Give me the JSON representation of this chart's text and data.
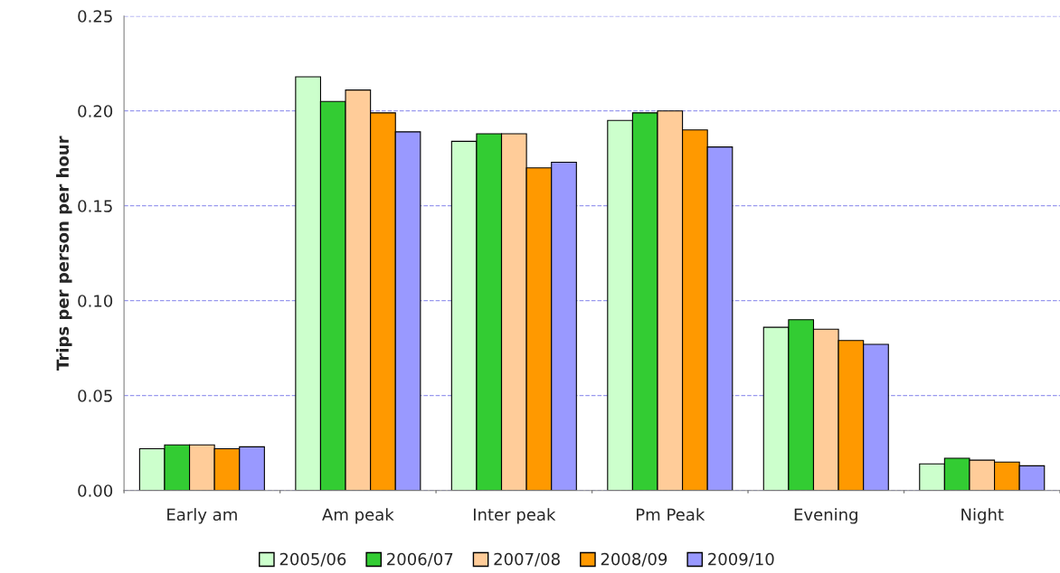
{
  "chart_data": {
    "type": "bar",
    "ylabel": "Trips per person per hour",
    "categories": [
      "Early am",
      "Am peak",
      "Inter peak",
      "Pm Peak",
      "Evening",
      "Night"
    ],
    "series": [
      {
        "name": "2005/06",
        "color": "#ccffcc",
        "values": [
          0.022,
          0.218,
          0.184,
          0.195,
          0.086,
          0.014
        ]
      },
      {
        "name": "2006/07",
        "color": "#33cc33",
        "values": [
          0.024,
          0.205,
          0.188,
          0.199,
          0.09,
          0.017
        ]
      },
      {
        "name": "2007/08",
        "color": "#ffcc99",
        "values": [
          0.024,
          0.211,
          0.188,
          0.2,
          0.085,
          0.016
        ]
      },
      {
        "name": "2008/09",
        "color": "#ff9900",
        "values": [
          0.022,
          0.199,
          0.17,
          0.19,
          0.079,
          0.015
        ]
      },
      {
        "name": "2009/10",
        "color": "#9999ff",
        "values": [
          0.023,
          0.189,
          0.173,
          0.181,
          0.077,
          0.013
        ]
      }
    ],
    "ylim": [
      0,
      0.25
    ],
    "yticks": [
      {
        "value": 0,
        "label": "0.00"
      },
      {
        "value": 0.05,
        "label": "0.05"
      },
      {
        "value": 0.1,
        "label": "0.10"
      },
      {
        "value": 0.15,
        "label": "0.15"
      },
      {
        "value": 0.2,
        "label": "0.20"
      },
      {
        "value": 0.25,
        "label": "0.25"
      }
    ],
    "grid": "y",
    "legend": "bottom"
  }
}
